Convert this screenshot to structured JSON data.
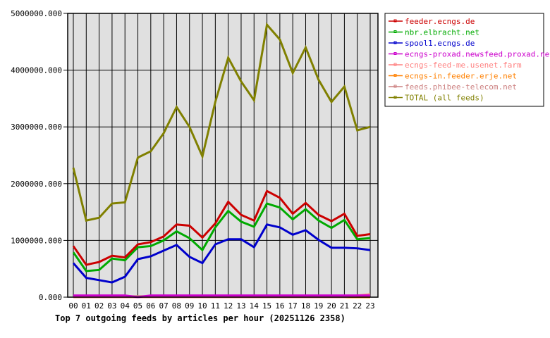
{
  "chart_data": {
    "type": "line",
    "title": "Top 7 outgoing feeds by articles per hour (20251126 2358)",
    "xlabel": "",
    "ylabel": "",
    "ylim": [
      0,
      5000000
    ],
    "yticks": [
      "0.000",
      "1000000.000",
      "2000000.000",
      "3000000.000",
      "4000000.000",
      "5000000.000"
    ],
    "grid": true,
    "legend_position": "right",
    "categories": [
      "00",
      "01",
      "02",
      "03",
      "04",
      "05",
      "06",
      "07",
      "08",
      "09",
      "10",
      "11",
      "12",
      "13",
      "14",
      "15",
      "16",
      "17",
      "18",
      "19",
      "20",
      "21",
      "22",
      "23"
    ],
    "series": [
      {
        "name": "feeder.ecngs.de",
        "color": "#cc0000",
        "values": [
          900000,
          570000,
          620000,
          730000,
          700000,
          930000,
          970000,
          1070000,
          1280000,
          1260000,
          1050000,
          1300000,
          1680000,
          1450000,
          1350000,
          1870000,
          1750000,
          1470000,
          1660000,
          1450000,
          1340000,
          1470000,
          1080000,
          1110000
        ]
      },
      {
        "name": "nbr.elbracht.net",
        "color": "#00aa00",
        "values": [
          790000,
          460000,
          480000,
          680000,
          650000,
          880000,
          900000,
          1000000,
          1160000,
          1040000,
          830000,
          1230000,
          1520000,
          1330000,
          1240000,
          1650000,
          1580000,
          1370000,
          1550000,
          1350000,
          1220000,
          1360000,
          1020000,
          1040000
        ]
      },
      {
        "name": "spool1.ecngs.de",
        "color": "#0000cc",
        "values": [
          600000,
          340000,
          300000,
          260000,
          360000,
          670000,
          720000,
          820000,
          920000,
          710000,
          600000,
          930000,
          1020000,
          1020000,
          880000,
          1280000,
          1230000,
          1100000,
          1180000,
          1010000,
          870000,
          870000,
          860000,
          830000
        ]
      },
      {
        "name": "ecngs-proxad.newsfeed.proxad.net",
        "color": "#cc00cc",
        "values": [
          30000,
          30000,
          30000,
          30000,
          30000,
          0,
          30000,
          30000,
          30000,
          30000,
          30000,
          30000,
          30000,
          30000,
          30000,
          30000,
          30000,
          30000,
          30000,
          30000,
          30000,
          30000,
          30000,
          30000
        ]
      },
      {
        "name": "ecngs-feed-me.usenet.farm",
        "color": "#ff8080",
        "values": [
          0,
          0,
          0,
          0,
          0,
          0,
          0,
          0,
          0,
          0,
          0,
          0,
          0,
          0,
          0,
          0,
          0,
          0,
          0,
          0,
          0,
          0,
          30000,
          50000
        ]
      },
      {
        "name": "ecngs-in.feeder.erje.net",
        "color": "#ff8000",
        "values": [
          0,
          0,
          0,
          0,
          0,
          0,
          0,
          0,
          0,
          0,
          0,
          0,
          0,
          0,
          0,
          0,
          0,
          0,
          0,
          0,
          0,
          0,
          0,
          0
        ]
      },
      {
        "name": "feeds.phibee-telecom.net",
        "color": "#cc8080",
        "values": [
          15000,
          15000,
          15000,
          15000,
          15000,
          15000,
          15000,
          15000,
          15000,
          15000,
          15000,
          15000,
          15000,
          15000,
          15000,
          15000,
          15000,
          15000,
          15000,
          15000,
          15000,
          15000,
          15000,
          15000
        ]
      },
      {
        "name": "TOTAL (all feeds)",
        "color": "#808000",
        "values": [
          2280000,
          1350000,
          1400000,
          1650000,
          1670000,
          2460000,
          2570000,
          2890000,
          3350000,
          3000000,
          2480000,
          3440000,
          4220000,
          3800000,
          3470000,
          4800000,
          4540000,
          3950000,
          4400000,
          3830000,
          3440000,
          3710000,
          2940000,
          3000000
        ]
      }
    ]
  }
}
